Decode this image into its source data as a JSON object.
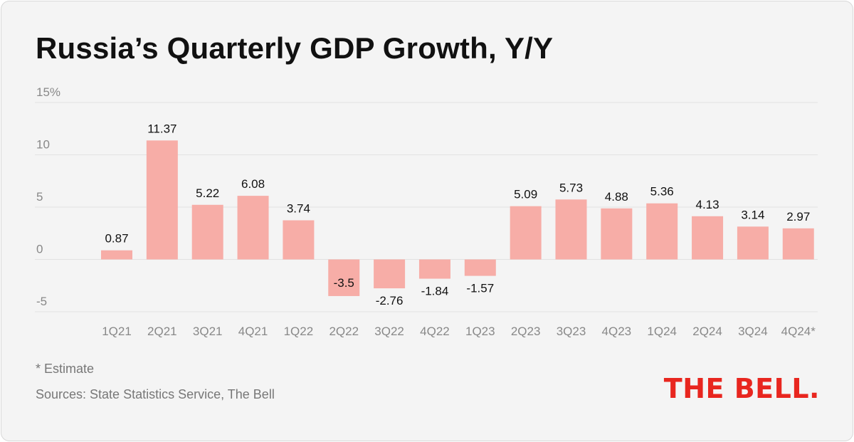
{
  "title": "Russia’s Quarterly GDP Growth, Y/Y",
  "footnote": "* Estimate",
  "sources": "Sources: State Statistics Service, The Bell",
  "logo": "THE BELL.",
  "colors": {
    "bar": "#f7ada7",
    "gridline": "#e2e2e2",
    "axis_text": "#888888",
    "label_text": "#111111",
    "logo": "#e8261f"
  },
  "chart_data": {
    "type": "bar",
    "categories": [
      "1Q21",
      "2Q21",
      "3Q21",
      "4Q21",
      "1Q22",
      "2Q22",
      "3Q22",
      "4Q22",
      "1Q23",
      "2Q23",
      "3Q23",
      "4Q23",
      "1Q24",
      "2Q24",
      "3Q24",
      "4Q24*"
    ],
    "values": [
      0.87,
      11.37,
      5.22,
      6.08,
      3.74,
      -3.5,
      -2.76,
      -1.84,
      -1.57,
      5.09,
      5.73,
      4.88,
      5.36,
      4.13,
      3.14,
      2.97
    ],
    "data_labels": [
      "0.87",
      "11.37",
      "5.22",
      "6.08",
      "3.74",
      "-3.5",
      "-2.76",
      "-1.84",
      "-1.57",
      "5.09",
      "5.73",
      "4.88",
      "5.36",
      "4.13",
      "3.14",
      "2.97"
    ],
    "y_ticks": [
      15,
      10,
      5,
      0,
      -5
    ],
    "y_tick_labels": [
      "15%",
      "10",
      "5",
      "0",
      "-5"
    ],
    "ylim": [
      -5,
      15
    ],
    "grid": true,
    "title": "Russia’s Quarterly GDP Growth, Y/Y"
  }
}
